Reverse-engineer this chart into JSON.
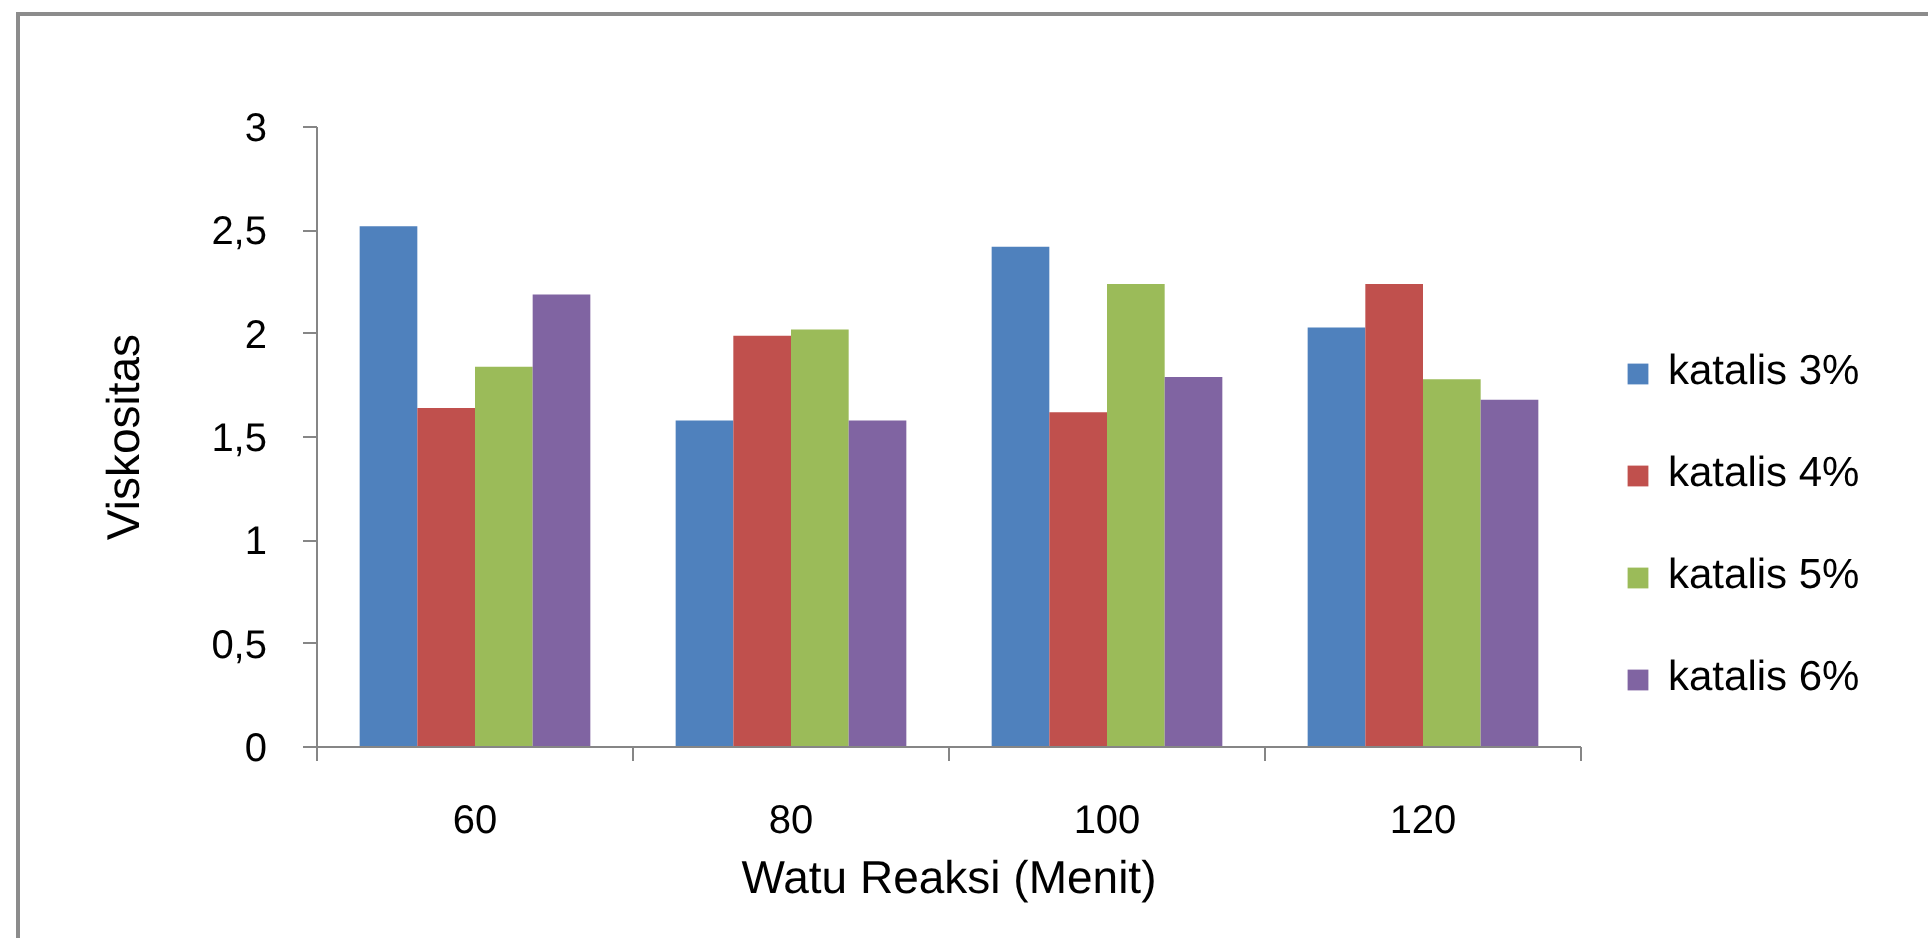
{
  "chart_data": {
    "type": "bar",
    "xlabel": "Watu Reaksi (Menit)",
    "ylabel": "Viskositas",
    "categories": [
      "60",
      "80",
      "100",
      "120"
    ],
    "series": [
      {
        "name": "katalis 3%",
        "color": "#4f81bd",
        "values": [
          2.52,
          1.58,
          2.42,
          2.03
        ]
      },
      {
        "name": "katalis 4%",
        "color": "#c0504d",
        "values": [
          1.64,
          1.99,
          1.62,
          2.24
        ]
      },
      {
        "name": "katalis 5%",
        "color": "#9bbb59",
        "values": [
          1.84,
          2.02,
          2.24,
          1.78
        ]
      },
      {
        "name": "katalis 6%",
        "color": "#8064a2",
        "values": [
          2.19,
          1.58,
          1.79,
          1.68
        ]
      }
    ],
    "ylim": [
      0,
      3
    ],
    "yticks": [
      0,
      {
        "value": 0.5,
        "label": "0,5"
      },
      1,
      {
        "value": 1.5,
        "label": "1,5"
      },
      2,
      {
        "value": 2.5,
        "label": "2,5"
      },
      3
    ],
    "legend": "right"
  }
}
